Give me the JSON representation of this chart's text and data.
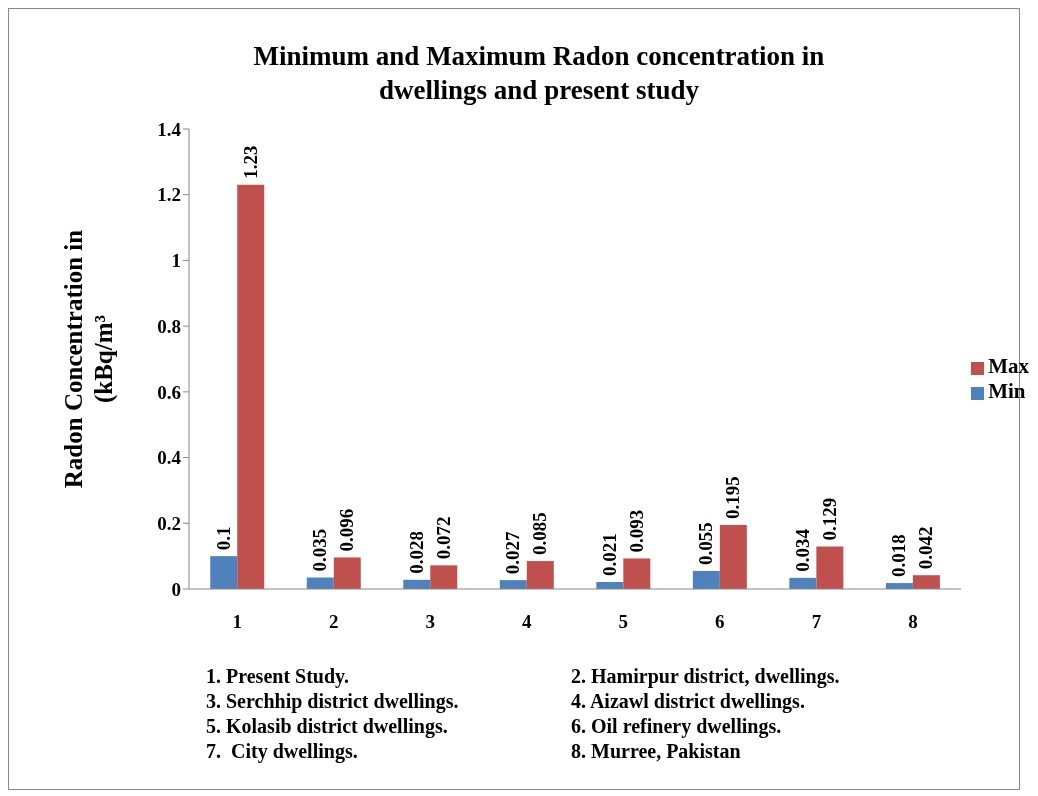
{
  "chart_data": {
    "type": "bar",
    "title": "Minimum and Maximum Radon concentration in dwellings and present study",
    "ylabel": "Radon Concentration in (kBq/m³",
    "categories": [
      "1",
      "2",
      "3",
      "4",
      "5",
      "6",
      "7",
      "8"
    ],
    "series": [
      {
        "name": "Min",
        "color": "#4f81bd",
        "values": [
          0.1,
          0.035,
          0.028,
          0.027,
          0.021,
          0.055,
          0.034,
          0.018
        ]
      },
      {
        "name": "Max",
        "color": "#c0504d",
        "values": [
          1.23,
          0.096,
          0.072,
          0.085,
          0.093,
          0.195,
          0.129,
          0.042
        ]
      }
    ],
    "ylim": [
      0,
      1.4
    ],
    "yticks": [
      0,
      0.2,
      0.4,
      0.6,
      0.8,
      1,
      1.2,
      1.4
    ],
    "grid": false,
    "legend": "right",
    "data_labels": true,
    "annotations": [
      "1. Present Study.",
      "2. Hamirpur district, dwellings.",
      "3. Serchhip district dwellings.",
      "4. Aizawl district dwellings.",
      "5. Kolasib district dwellings.",
      "6. Oil refinery dwellings.",
      "7.  City dwellings.",
      "8. Murree, Pakistan"
    ]
  }
}
